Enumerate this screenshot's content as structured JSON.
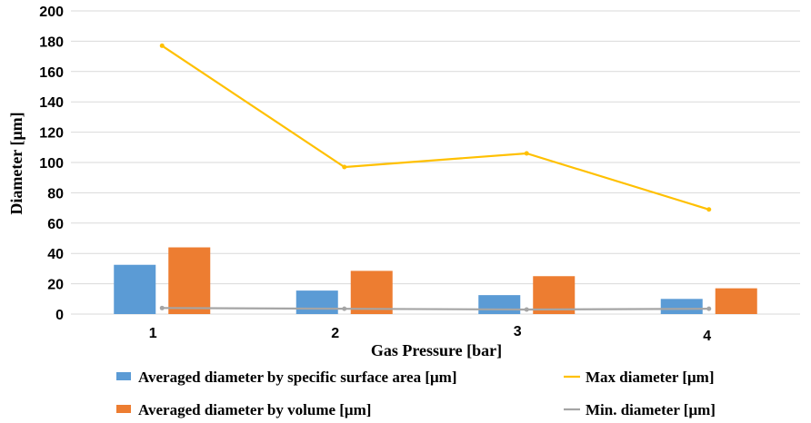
{
  "chart_data": {
    "type": "bar",
    "categories": [
      "1",
      "2",
      "3",
      "4"
    ],
    "xlabel": "Gas Pressure [bar]",
    "ylabel": "Diameter [μm]",
    "ylim": [
      0,
      200
    ],
    "yticks": [
      0,
      20,
      40,
      60,
      80,
      100,
      120,
      140,
      160,
      180,
      200
    ],
    "grid": true,
    "legend_position": "bottom",
    "series": [
      {
        "name": "Averaged diameter by specific surface area [μm]",
        "type": "bar",
        "color": "#5B9BD5",
        "values": [
          32.5,
          15.5,
          12.5,
          10
        ]
      },
      {
        "name": "Averaged diameter by volume [μm]",
        "type": "bar",
        "color": "#ED7D31",
        "values": [
          44,
          28.5,
          25,
          17
        ]
      },
      {
        "name": "Max diameter [μm]",
        "type": "line",
        "color": "#FFC000",
        "values": [
          177,
          97,
          106,
          69
        ]
      },
      {
        "name": "Min. diameter [μm]",
        "type": "line",
        "color": "#A5A5A5",
        "values": [
          4,
          3.5,
          3,
          3.5
        ]
      }
    ]
  }
}
